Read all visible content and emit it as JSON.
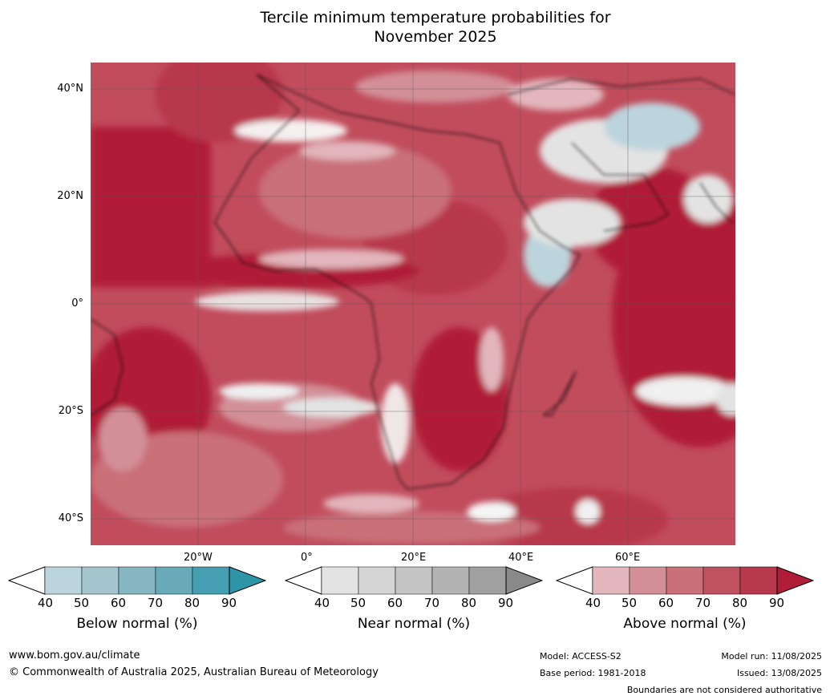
{
  "title_line1": "Tercile minimum temperature probabilities for",
  "title_line2": "November 2025",
  "lat_labels": [
    "40°N",
    "20°N",
    "0°",
    "20°S",
    "40°S"
  ],
  "lon_labels": [
    "20°W",
    "0°",
    "20°E",
    "40°E",
    "60°E"
  ],
  "colorbars": [
    {
      "label": "Below normal (%)",
      "ticks": [
        "40",
        "50",
        "60",
        "70",
        "80",
        "90"
      ],
      "colors": [
        "#bcd4dc",
        "#a4c5cd",
        "#86b6c2",
        "#68aab8",
        "#459fb0",
        "#2e95a8"
      ]
    },
    {
      "label": "Near normal (%)",
      "ticks": [
        "40",
        "50",
        "60",
        "70",
        "80",
        "90"
      ],
      "colors": [
        "#e3e3e3",
        "#d4d4d4",
        "#c4c4c4",
        "#b3b3b3",
        "#a0a0a0",
        "#898989"
      ]
    },
    {
      "label": "Above normal (%)",
      "ticks": [
        "40",
        "50",
        "60",
        "70",
        "80",
        "90"
      ],
      "colors": [
        "#e2b6bc",
        "#d38f98",
        "#c97079",
        "#c0515f",
        "#b8394b",
        "#b01d38"
      ]
    }
  ],
  "footer": {
    "url": "www.bom.gov.au/climate",
    "copyright": "© Commonwealth of Australia 2025, Australian Bureau of Meteorology",
    "model": "Model: ACCESS-S2",
    "base_period": "Base period: 1981-2018",
    "model_run": "Model run: 11/08/2025",
    "issued": "Issued: 13/08/2025",
    "disclaimer": "Boundaries are not considered authoritative"
  }
}
